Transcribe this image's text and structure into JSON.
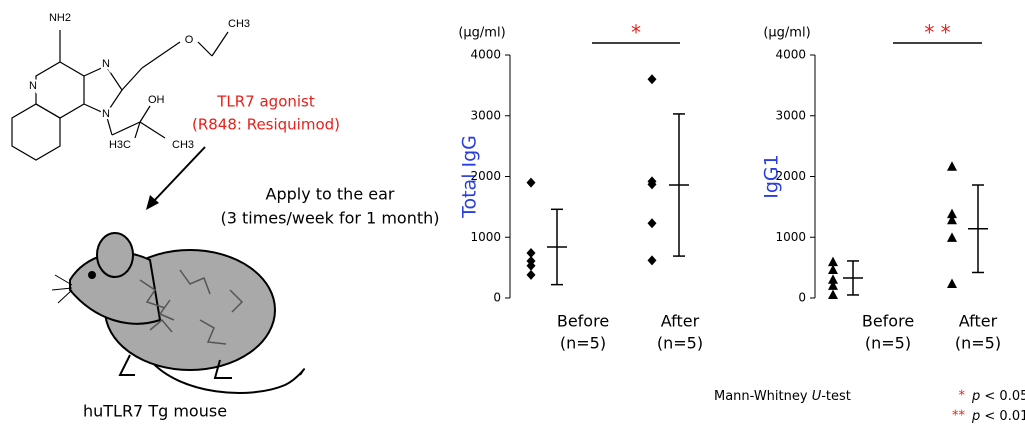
{
  "diagram": {
    "atoms": {
      "nh2": "NH2",
      "n_ring": "N",
      "n3": "N",
      "n1": "N",
      "o": "O",
      "ch3_top": "CH3",
      "oh": "OH",
      "h3c": "H3C",
      "ch3_bottom": "CH3"
    },
    "agonist_name": "TLR7 agonist",
    "agonist_detail": "(R848: Resiquimod)",
    "application": "Apply to the ear",
    "schedule": "(3 times/week for 1 month)",
    "mouse_label": "huTLR7 Tg mouse"
  },
  "chart_data": [
    {
      "type": "dot",
      "ylabel": "Total IgG",
      "unit_label": "(μg/ml)",
      "significance": "*",
      "categories": [
        "Before",
        "After"
      ],
      "category_notes": [
        "(n=5)",
        "(n=5)"
      ],
      "values": [
        [
          1900,
          740,
          610,
          530,
          380
        ],
        [
          3600,
          1920,
          1870,
          1230,
          620
        ]
      ],
      "means": [
        840,
        1860
      ],
      "errors": [
        620,
        1170
      ],
      "marker": "diamond",
      "color": "#000000",
      "ylim": [
        0,
        4000
      ],
      "yticks": [
        0,
        1000,
        2000,
        3000,
        4000
      ]
    },
    {
      "type": "dot",
      "ylabel": "IgG1",
      "unit_label": "(μg/ml)",
      "significance": "* *",
      "categories": [
        "Before",
        "After"
      ],
      "category_notes": [
        "(n=5)",
        "(n=5)"
      ],
      "values": [
        [
          590,
          460,
          300,
          200,
          50
        ],
        [
          2160,
          1380,
          1280,
          990,
          230
        ]
      ],
      "means": [
        330,
        1140
      ],
      "errors": [
        280,
        720
      ],
      "marker": "triangle",
      "color": "#000000",
      "ylim": [
        0,
        4000
      ],
      "yticks": [
        0,
        1000,
        2000,
        3000,
        4000
      ]
    }
  ],
  "footnote": {
    "test_prefix": "Mann-Whitney ",
    "test_var": "U",
    "test_suffix": "-test",
    "notes": [
      {
        "stars": "*",
        "p": "p",
        "text": " < 0.05"
      },
      {
        "stars": "**",
        "p": "p",
        "text": " < 0.01"
      }
    ]
  }
}
